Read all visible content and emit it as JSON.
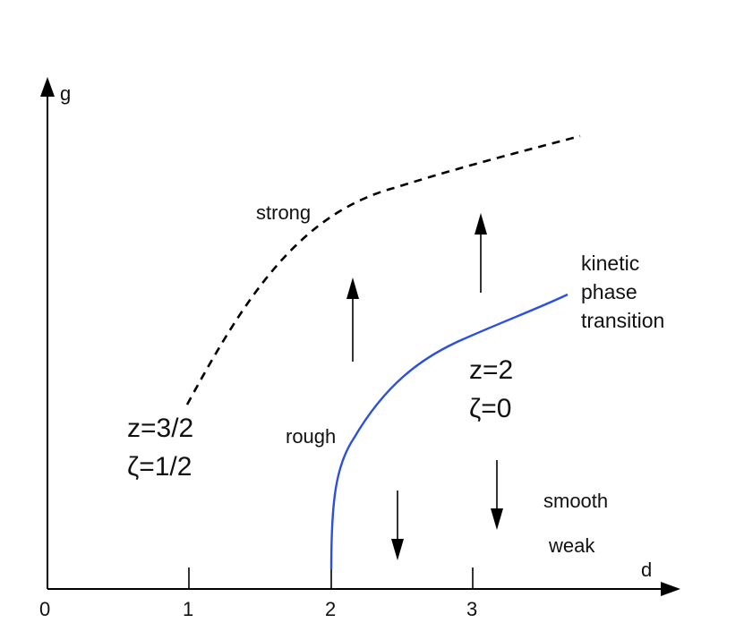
{
  "axes": {
    "x_label": "d",
    "y_label": "g",
    "x_ticks": [
      "0",
      "1",
      "2",
      "3"
    ]
  },
  "curves": {
    "strong_boundary": {
      "style": "dashed",
      "color": "#000000"
    },
    "transition": {
      "style": "solid",
      "color": "#2b4fe0"
    }
  },
  "labels": {
    "strong": "strong",
    "rough": "rough",
    "smooth": "smooth",
    "weak": "weak",
    "kinetic_line1": "kinetic",
    "kinetic_line2": "phase",
    "kinetic_line3": "transition",
    "left_exponent_z": "z=3/2",
    "left_exponent_zeta": "ζ=1/2",
    "right_exponent_z": "z=2",
    "right_exponent_zeta": "ζ=0"
  },
  "flow_arrows": [
    {
      "name": "flow-arrow-up-left",
      "direction": "up"
    },
    {
      "name": "flow-arrow-up-right",
      "direction": "up"
    },
    {
      "name": "flow-arrow-down-left",
      "direction": "down"
    },
    {
      "name": "flow-arrow-down-right",
      "direction": "down"
    }
  ]
}
